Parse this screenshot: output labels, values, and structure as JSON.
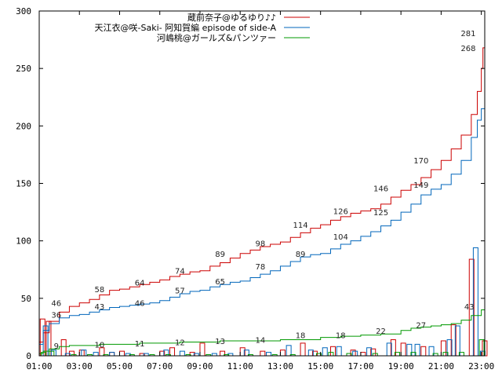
{
  "chart_data": {
    "type": "line",
    "xlim": [
      1,
      23.17
    ],
    "ylim": [
      0,
      300
    ],
    "x_ticks": [
      "01:00",
      "03:00",
      "05:00",
      "07:00",
      "09:00",
      "11:00",
      "13:00",
      "15:00",
      "17:00",
      "19:00",
      "21:00",
      "23:00"
    ],
    "y_ticks": [
      0,
      50,
      100,
      150,
      200,
      250,
      300
    ],
    "grid": false,
    "legend_position": "top-center",
    "series": [
      {
        "name": "蔵前奈子@ゆるゆり♪♪",
        "color": "#cc0000",
        "points": [
          [
            1.0,
            12
          ],
          [
            1.2,
            20
          ],
          [
            1.5,
            30
          ],
          [
            2.0,
            38
          ],
          [
            2.5,
            43
          ],
          [
            3.0,
            46
          ],
          [
            3.5,
            49
          ],
          [
            4.0,
            53
          ],
          [
            4.5,
            57
          ],
          [
            5.0,
            58
          ],
          [
            5.5,
            60
          ],
          [
            6.0,
            62
          ],
          [
            6.5,
            64
          ],
          [
            7.0,
            66
          ],
          [
            7.5,
            69
          ],
          [
            8.0,
            71
          ],
          [
            8.5,
            73
          ],
          [
            9.0,
            74
          ],
          [
            9.5,
            78
          ],
          [
            10.0,
            81
          ],
          [
            10.5,
            85
          ],
          [
            11.0,
            89
          ],
          [
            11.5,
            92
          ],
          [
            12.0,
            95
          ],
          [
            12.5,
            97
          ],
          [
            13.0,
            99
          ],
          [
            13.5,
            103
          ],
          [
            14.0,
            107
          ],
          [
            14.5,
            111
          ],
          [
            15.0,
            114
          ],
          [
            15.5,
            118
          ],
          [
            16.0,
            121
          ],
          [
            16.5,
            124
          ],
          [
            17.0,
            126
          ],
          [
            17.5,
            128
          ],
          [
            18.0,
            132
          ],
          [
            18.5,
            138
          ],
          [
            19.0,
            144
          ],
          [
            19.5,
            149
          ],
          [
            20.0,
            155
          ],
          [
            20.5,
            162
          ],
          [
            21.0,
            170
          ],
          [
            21.5,
            180
          ],
          [
            22.0,
            192
          ],
          [
            22.5,
            210
          ],
          [
            22.8,
            230
          ],
          [
            23.0,
            250
          ],
          [
            23.08,
            268
          ],
          [
            23.17,
            281
          ]
        ]
      },
      {
        "name": "天江衣@咲-Saki- 阿知賀編 episode of side-A",
        "color": "#0066bb",
        "points": [
          [
            1.0,
            10
          ],
          [
            1.2,
            22
          ],
          [
            1.5,
            28
          ],
          [
            2.0,
            33
          ],
          [
            2.5,
            35
          ],
          [
            3.0,
            36
          ],
          [
            3.5,
            38
          ],
          [
            4.0,
            40
          ],
          [
            4.5,
            42
          ],
          [
            5.0,
            43
          ],
          [
            5.5,
            44
          ],
          [
            6.0,
            45
          ],
          [
            6.5,
            46
          ],
          [
            7.0,
            48
          ],
          [
            7.5,
            51
          ],
          [
            8.0,
            54
          ],
          [
            8.5,
            56
          ],
          [
            9.0,
            57
          ],
          [
            9.5,
            60
          ],
          [
            10.0,
            62
          ],
          [
            10.5,
            64
          ],
          [
            11.0,
            65
          ],
          [
            11.5,
            68
          ],
          [
            12.0,
            71
          ],
          [
            12.5,
            74
          ],
          [
            13.0,
            78
          ],
          [
            13.5,
            82
          ],
          [
            14.0,
            86
          ],
          [
            14.5,
            88
          ],
          [
            15.0,
            89
          ],
          [
            15.5,
            93
          ],
          [
            16.0,
            97
          ],
          [
            16.5,
            100
          ],
          [
            17.0,
            104
          ],
          [
            17.5,
            108
          ],
          [
            18.0,
            113
          ],
          [
            18.5,
            118
          ],
          [
            19.0,
            125
          ],
          [
            19.5,
            132
          ],
          [
            20.0,
            140
          ],
          [
            20.5,
            145
          ],
          [
            21.0,
            149
          ],
          [
            21.5,
            158
          ],
          [
            22.0,
            170
          ],
          [
            22.5,
            190
          ],
          [
            22.8,
            205
          ],
          [
            23.0,
            215
          ],
          [
            23.17,
            268
          ]
        ]
      },
      {
        "name": "河嶋桃@ガールズ&パンツァー",
        "color": "#009900",
        "points": [
          [
            1.0,
            2
          ],
          [
            1.2,
            4
          ],
          [
            1.5,
            6
          ],
          [
            2.0,
            8
          ],
          [
            2.5,
            9
          ],
          [
            3.0,
            9
          ],
          [
            4.0,
            10
          ],
          [
            5.0,
            10
          ],
          [
            6.0,
            11
          ],
          [
            7.0,
            11
          ],
          [
            8.0,
            12
          ],
          [
            9.0,
            12
          ],
          [
            10.0,
            13
          ],
          [
            11.0,
            13
          ],
          [
            12.0,
            13
          ],
          [
            13.0,
            14
          ],
          [
            14.0,
            14
          ],
          [
            15.0,
            16
          ],
          [
            16.0,
            17
          ],
          [
            17.0,
            18
          ],
          [
            18.0,
            19
          ],
          [
            19.0,
            22
          ],
          [
            19.5,
            24
          ],
          [
            20.0,
            25
          ],
          [
            20.5,
            26
          ],
          [
            21.0,
            27
          ],
          [
            21.5,
            28
          ],
          [
            22.0,
            31
          ],
          [
            22.5,
            35
          ],
          [
            23.0,
            40
          ],
          [
            23.17,
            43
          ]
        ]
      }
    ],
    "data_labels": [
      {
        "series": 0,
        "x": 1.85,
        "y": 46,
        "text": "46"
      },
      {
        "series": 0,
        "x": 4.0,
        "y": 58,
        "text": "58"
      },
      {
        "series": 0,
        "x": 6.0,
        "y": 64,
        "text": "64"
      },
      {
        "series": 0,
        "x": 8.0,
        "y": 74,
        "text": "74"
      },
      {
        "series": 0,
        "x": 10.0,
        "y": 89,
        "text": "89"
      },
      {
        "series": 0,
        "x": 12.0,
        "y": 98,
        "text": "98"
      },
      {
        "series": 0,
        "x": 14.0,
        "y": 114,
        "text": "114"
      },
      {
        "series": 0,
        "x": 16.0,
        "y": 126,
        "text": "126"
      },
      {
        "series": 0,
        "x": 18.0,
        "y": 146,
        "text": "146"
      },
      {
        "series": 0,
        "x": 20.0,
        "y": 170,
        "text": "170"
      },
      {
        "series": 0,
        "x": 22.35,
        "y": 281,
        "text": "281"
      },
      {
        "series": 1,
        "x": 1.85,
        "y": 36,
        "text": "36"
      },
      {
        "series": 1,
        "x": 4.0,
        "y": 43,
        "text": "43"
      },
      {
        "series": 1,
        "x": 6.0,
        "y": 46,
        "text": "46"
      },
      {
        "series": 1,
        "x": 8.0,
        "y": 57,
        "text": "57"
      },
      {
        "series": 1,
        "x": 10.0,
        "y": 65,
        "text": "65"
      },
      {
        "series": 1,
        "x": 12.0,
        "y": 78,
        "text": "78"
      },
      {
        "series": 1,
        "x": 14.0,
        "y": 89,
        "text": "89"
      },
      {
        "series": 1,
        "x": 16.0,
        "y": 104,
        "text": "104"
      },
      {
        "series": 1,
        "x": 18.0,
        "y": 125,
        "text": "125"
      },
      {
        "series": 1,
        "x": 20.0,
        "y": 149,
        "text": "149"
      },
      {
        "series": 1,
        "x": 22.35,
        "y": 268,
        "text": "268"
      },
      {
        "series": 2,
        "x": 1.85,
        "y": 9,
        "text": "9"
      },
      {
        "series": 2,
        "x": 4.0,
        "y": 10,
        "text": "10"
      },
      {
        "series": 2,
        "x": 6.0,
        "y": 11,
        "text": "11"
      },
      {
        "series": 2,
        "x": 8.0,
        "y": 12,
        "text": "12"
      },
      {
        "series": 2,
        "x": 10.0,
        "y": 13,
        "text": "13"
      },
      {
        "series": 2,
        "x": 12.0,
        "y": 14,
        "text": "14"
      },
      {
        "series": 2,
        "x": 14.0,
        "y": 18,
        "text": "18"
      },
      {
        "series": 2,
        "x": 16.0,
        "y": 18,
        "text": "18"
      },
      {
        "series": 2,
        "x": 18.0,
        "y": 22,
        "text": "22"
      },
      {
        "series": 2,
        "x": 20.0,
        "y": 27,
        "text": "27"
      },
      {
        "series": 2,
        "x": 22.4,
        "y": 43,
        "text": "43"
      }
    ],
    "bars": [
      {
        "series": 0,
        "values": [
          [
            1.05,
            32
          ],
          [
            1.35,
            30
          ],
          [
            2.1,
            14
          ],
          [
            2.5,
            4
          ],
          [
            3.0,
            5
          ],
          [
            4.0,
            7
          ],
          [
            4.5,
            3
          ],
          [
            5.0,
            4
          ],
          [
            6.0,
            2
          ],
          [
            7.0,
            4
          ],
          [
            7.5,
            7
          ],
          [
            8.5,
            3
          ],
          [
            9.0,
            11
          ],
          [
            10.0,
            4
          ],
          [
            11.0,
            7
          ],
          [
            12.0,
            4
          ],
          [
            13.0,
            5
          ],
          [
            14.0,
            11
          ],
          [
            14.6,
            4
          ],
          [
            15.5,
            8
          ],
          [
            16.5,
            5
          ],
          [
            17.0,
            3
          ],
          [
            17.5,
            6
          ],
          [
            18.5,
            14
          ],
          [
            19.0,
            11
          ],
          [
            20.0,
            8
          ],
          [
            21.0,
            13
          ],
          [
            21.5,
            27
          ],
          [
            22.4,
            84
          ],
          [
            23.05,
            13
          ]
        ]
      },
      {
        "series": 1,
        "values": [
          [
            1.2,
            26
          ],
          [
            1.6,
            5
          ],
          [
            2.3,
            2
          ],
          [
            3.1,
            5
          ],
          [
            3.7,
            3
          ],
          [
            4.5,
            3
          ],
          [
            5.3,
            2
          ],
          [
            6.2,
            2
          ],
          [
            7.2,
            5
          ],
          [
            8.0,
            4
          ],
          [
            8.7,
            2
          ],
          [
            9.6,
            2
          ],
          [
            10.4,
            2
          ],
          [
            11.2,
            5
          ],
          [
            12.3,
            3
          ],
          [
            13.3,
            9
          ],
          [
            14.4,
            5
          ],
          [
            15.1,
            7
          ],
          [
            15.8,
            8
          ],
          [
            16.6,
            4
          ],
          [
            17.3,
            7
          ],
          [
            18.3,
            11
          ],
          [
            19.3,
            10
          ],
          [
            19.7,
            10
          ],
          [
            20.4,
            8
          ],
          [
            21.3,
            14
          ],
          [
            21.7,
            26
          ],
          [
            22.6,
            94
          ],
          [
            22.95,
            4
          ]
        ]
      },
      {
        "series": 2,
        "values": [
          [
            1.1,
            3
          ],
          [
            1.5,
            4
          ],
          [
            2.6,
            1
          ],
          [
            3.4,
            1
          ],
          [
            4.2,
            1
          ],
          [
            5.5,
            1
          ],
          [
            6.5,
            1
          ],
          [
            7.3,
            1
          ],
          [
            8.3,
            1
          ],
          [
            9.3,
            1
          ],
          [
            10.2,
            1
          ],
          [
            11.4,
            1
          ],
          [
            12.6,
            1
          ],
          [
            13.5,
            1
          ],
          [
            14.8,
            2
          ],
          [
            15.4,
            3
          ],
          [
            16.3,
            2
          ],
          [
            17.6,
            2
          ],
          [
            18.7,
            3
          ],
          [
            19.5,
            3
          ],
          [
            20.6,
            2
          ],
          [
            21.1,
            3
          ],
          [
            21.9,
            3
          ],
          [
            22.9,
            14
          ]
        ]
      }
    ]
  }
}
